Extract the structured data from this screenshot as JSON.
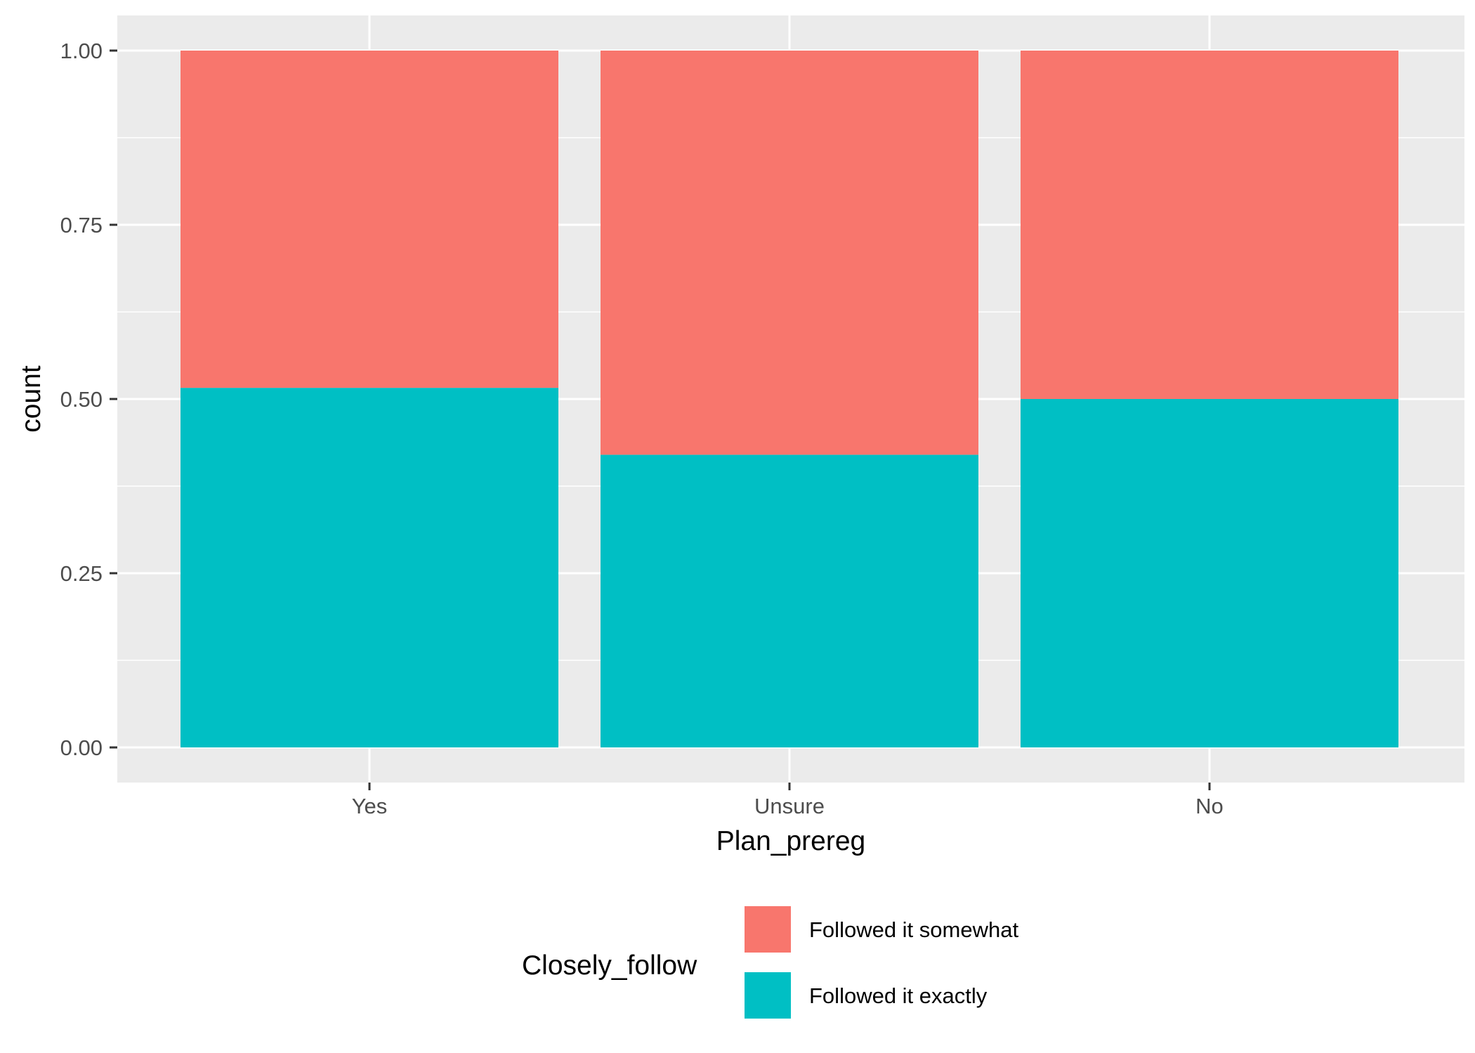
{
  "chart_data": {
    "type": "bar",
    "stacked": true,
    "categories": [
      "Yes",
      "Unsure",
      "No"
    ],
    "series": [
      {
        "name": "Followed it exactly",
        "values": [
          0.516,
          0.42,
          0.5
        ],
        "color": "#00BFC4"
      },
      {
        "name": "Followed it somewhat",
        "values": [
          0.484,
          0.58,
          0.5
        ],
        "color": "#F8766D"
      }
    ],
    "xlabel": "Plan_prereg",
    "ylabel": "count",
    "ylim": [
      0,
      1
    ],
    "yticks": [
      "0.00",
      "0.25",
      "0.50",
      "0.75",
      "1.00"
    ],
    "ytick_values": [
      0,
      0.25,
      0.5,
      0.75,
      1.0
    ],
    "grid": true,
    "legend": {
      "title": "Closely_follow",
      "position": "bottom",
      "items": [
        {
          "label": "Followed it somewhat",
          "color": "#F8766D"
        },
        {
          "label": "Followed it exactly",
          "color": "#00BFC4"
        }
      ]
    },
    "panel_background": "#EBEBEB",
    "grid_color": "#FFFFFF"
  }
}
